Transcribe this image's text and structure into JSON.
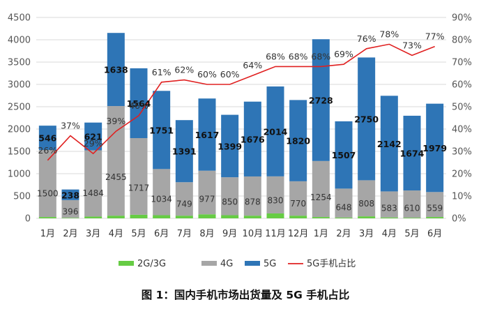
{
  "chart_data": {
    "type": "bar",
    "stacked": true,
    "title": "",
    "caption": "图 1：国内手机市场出货量及 5G 手机占比",
    "categories": [
      "1月",
      "2月",
      "3月",
      "4月",
      "5月",
      "6月",
      "7月",
      "8月",
      "9月",
      "10月",
      "11月",
      "12月",
      "1月",
      "2月",
      "3月",
      "4月",
      "5月",
      "6月"
    ],
    "series": [
      {
        "name": "2G/3G",
        "type": "bar",
        "axis": "left",
        "color": "#66cc44",
        "values": [
          30,
          12,
          40,
          60,
          80,
          70,
          60,
          90,
          70,
          60,
          110,
          60,
          30,
          18,
          45,
          20,
          14,
          30
        ]
      },
      {
        "name": "4G",
        "type": "bar",
        "axis": "left",
        "color": "#a6a6a6",
        "values": [
          1500,
          396,
          1484,
          2455,
          1717,
          1034,
          749,
          977,
          850,
          878,
          830,
          770,
          1254,
          648,
          808,
          583,
          610,
          559
        ]
      },
      {
        "name": "5G",
        "type": "bar",
        "axis": "left",
        "color": "#2e75b6",
        "values": [
          546,
          238,
          621,
          1638,
          1564,
          1751,
          1391,
          1617,
          1399,
          1676,
          2014,
          1820,
          2728,
          1507,
          2750,
          2142,
          1674,
          1979
        ]
      },
      {
        "name": "5G手机占比",
        "type": "line",
        "axis": "right",
        "color": "#e02020",
        "values": [
          26,
          37,
          29,
          39,
          46,
          61,
          62,
          60,
          60,
          64,
          68,
          68,
          68,
          69,
          76,
          78,
          73,
          77
        ]
      }
    ],
    "labels": {
      "5G": [
        "546",
        "238",
        "621",
        "1638",
        "1564",
        "1751",
        "1391",
        "1617",
        "1399",
        "1676",
        "2014",
        "1820",
        "2728",
        "1507",
        "2750",
        "2142",
        "1674",
        "1979"
      ],
      "4G": [
        "1500",
        "396",
        "1484",
        "2455",
        "1717",
        "1034",
        "749",
        "977",
        "850",
        "878",
        "830",
        "770",
        "1254",
        "648",
        "808",
        "583",
        "610",
        "559"
      ],
      "pct": [
        "26%",
        "37%",
        "29%",
        "39%",
        "46%",
        "61%",
        "62%",
        "60%",
        "60%",
        "64%",
        "68%",
        "68%",
        "68%",
        "69%",
        "76%",
        "78%",
        "73%",
        "77%"
      ]
    },
    "y_left": {
      "min": 0,
      "max": 4500,
      "ticks": [
        "0",
        "500",
        "1000",
        "1500",
        "2000",
        "2500",
        "3000",
        "3500",
        "4000",
        "4500"
      ]
    },
    "y_right": {
      "min": 0,
      "max": 90,
      "ticks": [
        "0%",
        "10%",
        "20%",
        "30%",
        "40%",
        "50%",
        "60%",
        "70%",
        "80%",
        "90%"
      ]
    },
    "grid": true,
    "legend_position": "bottom"
  }
}
